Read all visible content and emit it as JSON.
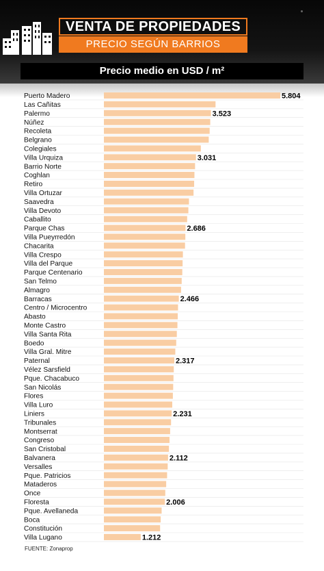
{
  "header": {
    "title": "VENTA DE PROPIEDADES",
    "subtitle": "PRECIO SEGÚN BARRIOS"
  },
  "chart_label": "Precio medio en USD / m²",
  "source": "FUENTE: Zonaprop",
  "colors": {
    "accent": "#f07a1f",
    "bar": "#f9cda3",
    "band": "#000000"
  },
  "chart_data": {
    "type": "bar",
    "orientation": "horizontal",
    "title": "Precio medio en USD / m²",
    "xlim": [
      0,
      5804
    ],
    "grid": true,
    "categories": [
      "Puerto Madero",
      "Las Cañitas",
      "Palermo",
      "Núñez",
      "Recoleta",
      "Belgrano",
      "Colegiales",
      "Villa Urquiza",
      "Barrio Norte",
      "Coghlan",
      "Retiro",
      "Villa Ortuzar",
      "Saavedra",
      "Villa Devoto",
      "Caballito",
      "Parque Chas",
      "Villa Pueyrredón",
      "Chacarita",
      "Villa Crespo",
      "Villa del Parque",
      "Parque Centenario",
      "San Telmo",
      "Almagro",
      "Barracas",
      "Centro / Microcentro",
      "Abasto",
      "Monte Castro",
      "Villa Santa Rita",
      "Boedo",
      "Villa Gral. Mitre",
      "Paternal",
      "Vélez Sarsfield",
      "Pque. Chacabuco",
      "San Nicolás",
      "Flores",
      "Villa Luro",
      "Liniers",
      "Tribunales",
      "Montserrat",
      "Congreso",
      "San Cristobal",
      "Balvanera",
      "Versalles",
      "Pque. Patricios",
      "Mataderos",
      "Once",
      "Floresta",
      "Pque. Avellaneda",
      "Boca",
      "Constitución",
      "Villa Lugano"
    ],
    "values": [
      5804,
      3674,
      3523,
      3500,
      3480,
      3450,
      3190,
      3031,
      3000,
      2980,
      2970,
      2950,
      2800,
      2780,
      2740,
      2686,
      2680,
      2670,
      2600,
      2590,
      2580,
      2560,
      2540,
      2466,
      2440,
      2430,
      2420,
      2400,
      2380,
      2350,
      2317,
      2300,
      2290,
      2280,
      2270,
      2250,
      2231,
      2210,
      2180,
      2160,
      2140,
      2112,
      2100,
      2080,
      2050,
      2020,
      2006,
      1900,
      1870,
      1850,
      1212
    ],
    "labels": [
      "5.804",
      "",
      "3.523",
      "",
      "",
      "",
      "",
      "3.031",
      "",
      "",
      "",
      "",
      "",
      "",
      "",
      "2.686",
      "",
      "",
      "",
      "",
      "",
      "",
      "",
      "2.466",
      "",
      "",
      "",
      "",
      "",
      "",
      "2.317",
      "",
      "",
      "",
      "",
      "",
      "2.231",
      "",
      "",
      "",
      "",
      "2.112",
      "",
      "",
      "",
      "",
      "2.006",
      "",
      "",
      "",
      "1.212"
    ]
  }
}
